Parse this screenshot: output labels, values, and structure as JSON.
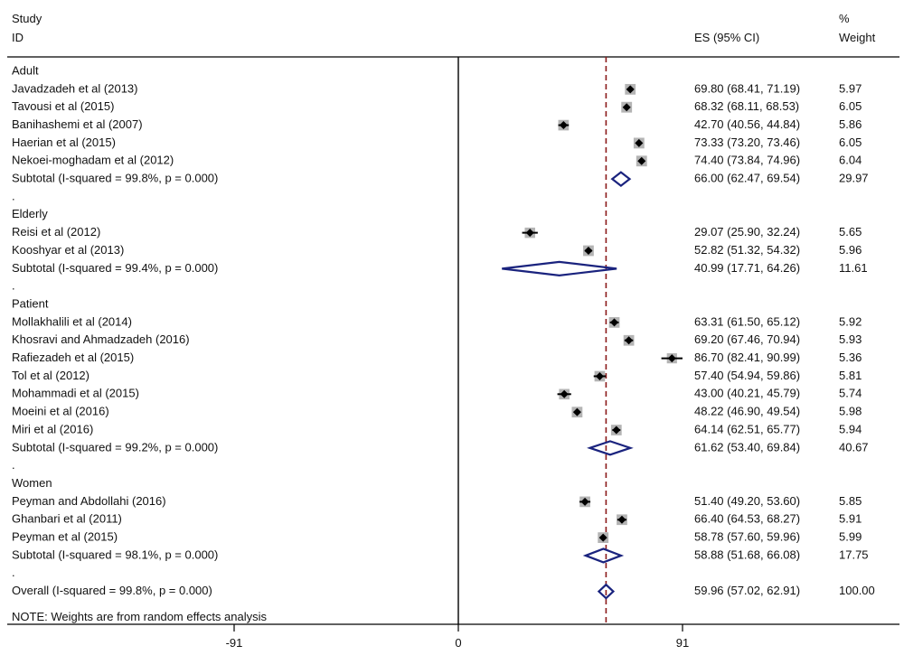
{
  "header": {
    "study_line1": "Study",
    "study_line2": "ID",
    "es_label": "ES (95% CI)",
    "weight_line1": "%",
    "weight_line2": "Weight"
  },
  "note": "NOTE: Weights are from random effects analysis",
  "colors": {
    "ci_line": "#000000",
    "weight_box": "#b4b4b4",
    "point": "#000000",
    "diamond": "#1a237e",
    "overall_line": "#8b1a1a",
    "axis": "#000000"
  },
  "chart_data": {
    "type": "forest",
    "overall_effect": 59.96,
    "xticks": [
      -91,
      0,
      91
    ],
    "xtick_labels": [
      "-91",
      "0",
      "91"
    ],
    "rows": [
      {
        "kind": "group",
        "label": "Adult"
      },
      {
        "kind": "study",
        "label": "Javadzadeh et al (2013)",
        "es": 69.8,
        "lo": 68.41,
        "hi": 71.19,
        "es_text": "69.80 (68.41, 71.19)",
        "weight": "5.97"
      },
      {
        "kind": "study",
        "label": "Tavousi et al (2015)",
        "es": 68.32,
        "lo": 68.11,
        "hi": 68.53,
        "es_text": "68.32 (68.11, 68.53)",
        "weight": "6.05"
      },
      {
        "kind": "study",
        "label": "Banihashemi et al (2007)",
        "es": 42.7,
        "lo": 40.56,
        "hi": 44.84,
        "es_text": "42.70 (40.56, 44.84)",
        "weight": "5.86"
      },
      {
        "kind": "study",
        "label": "Haerian et al (2015)",
        "es": 73.33,
        "lo": 73.2,
        "hi": 73.46,
        "es_text": "73.33 (73.20, 73.46)",
        "weight": "6.05"
      },
      {
        "kind": "study",
        "label": "Nekoei-moghadam et al (2012)",
        "es": 74.4,
        "lo": 73.84,
        "hi": 74.96,
        "es_text": "74.40 (73.84, 74.96)",
        "weight": "6.04"
      },
      {
        "kind": "subtotal",
        "label": "Subtotal  (I-squared = 99.8%, p = 0.000)",
        "es": 66.0,
        "lo": 62.47,
        "hi": 69.54,
        "es_text": "66.00 (62.47, 69.54)",
        "weight": "29.97"
      },
      {
        "kind": "dot",
        "label": "."
      },
      {
        "kind": "group",
        "label": "Elderly"
      },
      {
        "kind": "study",
        "label": "Reisi et al (2012)",
        "es": 29.07,
        "lo": 25.9,
        "hi": 32.24,
        "es_text": "29.07 (25.90, 32.24)",
        "weight": "5.65"
      },
      {
        "kind": "study",
        "label": "Kooshyar et al (2013)",
        "es": 52.82,
        "lo": 51.32,
        "hi": 54.32,
        "es_text": "52.82 (51.32, 54.32)",
        "weight": "5.96"
      },
      {
        "kind": "subtotal",
        "label": "Subtotal  (I-squared = 99.4%, p = 0.000)",
        "es": 40.99,
        "lo": 17.71,
        "hi": 64.26,
        "es_text": "40.99 (17.71, 64.26)",
        "weight": "11.61"
      },
      {
        "kind": "dot",
        "label": "."
      },
      {
        "kind": "group",
        "label": "Patient"
      },
      {
        "kind": "study",
        "label": "Mollakhalili et al (2014)",
        "es": 63.31,
        "lo": 61.5,
        "hi": 65.12,
        "es_text": "63.31 (61.50, 65.12)",
        "weight": "5.92"
      },
      {
        "kind": "study",
        "label": "Khosravi and Ahmadzadeh (2016)",
        "es": 69.2,
        "lo": 67.46,
        "hi": 70.94,
        "es_text": "69.20 (67.46, 70.94)",
        "weight": "5.93"
      },
      {
        "kind": "study",
        "label": "Rafiezadeh et al (2015)",
        "es": 86.7,
        "lo": 82.41,
        "hi": 90.99,
        "es_text": "86.70 (82.41, 90.99)",
        "weight": "5.36"
      },
      {
        "kind": "study",
        "label": "Tol et al (2012)",
        "es": 57.4,
        "lo": 54.94,
        "hi": 59.86,
        "es_text": "57.40 (54.94, 59.86)",
        "weight": "5.81"
      },
      {
        "kind": "study",
        "label": "Mohammadi et al (2015)",
        "es": 43.0,
        "lo": 40.21,
        "hi": 45.79,
        "es_text": "43.00 (40.21, 45.79)",
        "weight": "5.74"
      },
      {
        "kind": "study",
        "label": "Moeini et al (2016)",
        "es": 48.22,
        "lo": 46.9,
        "hi": 49.54,
        "es_text": "48.22 (46.90, 49.54)",
        "weight": "5.98"
      },
      {
        "kind": "study",
        "label": "Miri et al (2016)",
        "es": 64.14,
        "lo": 62.51,
        "hi": 65.77,
        "es_text": "64.14 (62.51, 65.77)",
        "weight": "5.94"
      },
      {
        "kind": "subtotal",
        "label": "Subtotal  (I-squared = 99.2%, p = 0.000)",
        "es": 61.62,
        "lo": 53.4,
        "hi": 69.84,
        "es_text": "61.62 (53.40, 69.84)",
        "weight": "40.67"
      },
      {
        "kind": "dot",
        "label": "."
      },
      {
        "kind": "group",
        "label": "Women"
      },
      {
        "kind": "study",
        "label": "Peyman and Abdollahi (2016)",
        "es": 51.4,
        "lo": 49.2,
        "hi": 53.6,
        "es_text": "51.40 (49.20, 53.60)",
        "weight": "5.85"
      },
      {
        "kind": "study",
        "label": "Ghanbari et al (2011)",
        "es": 66.4,
        "lo": 64.53,
        "hi": 68.27,
        "es_text": "66.40 (64.53, 68.27)",
        "weight": "5.91"
      },
      {
        "kind": "study",
        "label": "Peyman et al (2015)",
        "es": 58.78,
        "lo": 57.6,
        "hi": 59.96,
        "es_text": "58.78 (57.60, 59.96)",
        "weight": "5.99"
      },
      {
        "kind": "subtotal",
        "label": "Subtotal  (I-squared = 98.1%, p = 0.000)",
        "es": 58.88,
        "lo": 51.68,
        "hi": 66.08,
        "es_text": "58.88 (51.68, 66.08)",
        "weight": "17.75"
      },
      {
        "kind": "dot",
        "label": "."
      },
      {
        "kind": "overall",
        "label": "Overall  (I-squared = 99.8%, p = 0.000)",
        "es": 59.96,
        "lo": 57.02,
        "hi": 62.91,
        "es_text": "59.96 (57.02, 62.91)",
        "weight": "100.00"
      }
    ]
  }
}
